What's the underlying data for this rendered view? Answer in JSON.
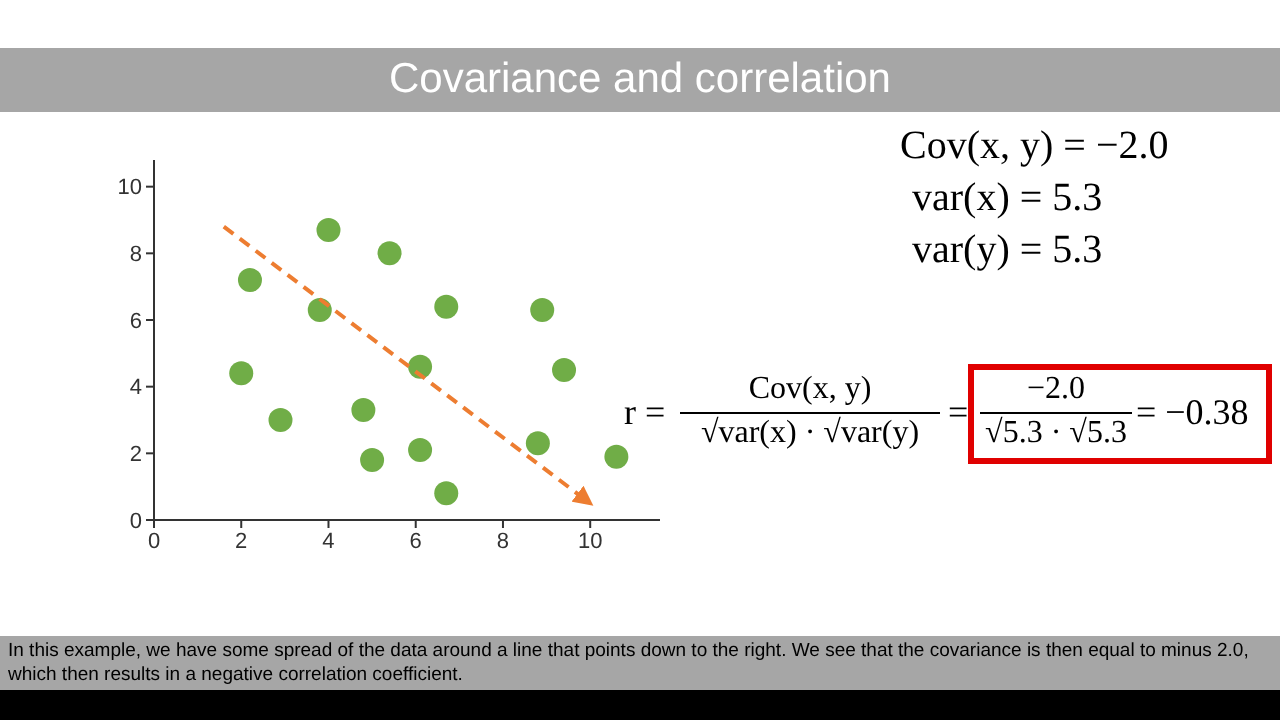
{
  "chart_data": {
    "type": "scatter",
    "title": "Covariance and correlation",
    "xlim": [
      0,
      11.6
    ],
    "ylim": [
      0,
      10.8
    ],
    "xticks": [
      0,
      2,
      4,
      6,
      8,
      10
    ],
    "yticks": [
      0,
      2,
      4,
      6,
      8,
      10
    ],
    "grid": false,
    "legend": false,
    "marker": "circle",
    "series": [
      {
        "color": "#70ad47",
        "x": [
          2.2,
          4.0,
          5.4,
          3.8,
          6.7,
          8.9,
          2.0,
          6.1,
          9.4,
          2.9,
          4.8,
          5.0,
          6.1,
          6.7,
          8.8,
          10.6
        ],
        "values": [
          7.2,
          8.7,
          8.0,
          6.3,
          6.4,
          6.3,
          4.4,
          4.6,
          4.5,
          3.0,
          3.3,
          1.8,
          2.1,
          0.8,
          2.3,
          1.9
        ]
      },
      {
        "type": "line",
        "color": "#ed7d31",
        "line_style": "dashed",
        "marker": "none",
        "x": [
          1.6,
          10.0
        ],
        "values": [
          8.8,
          0.5
        ]
      }
    ],
    "annotations": [
      "Cov(x, y) = −2.0",
      "var(x) = 5.3",
      "var(y) = 5.3",
      "r =",
      "Cov(x, y)",
      "√var(x) · √var(y)",
      "=",
      "−2.0",
      "√5.3 · √5.3",
      "= −0.38",
      "In this example, we have some spread of the data around a line that points down to the right. We see that the covariance is then equal to minus 2.0, which then results in a negative correlation coefficient."
    ]
  }
}
